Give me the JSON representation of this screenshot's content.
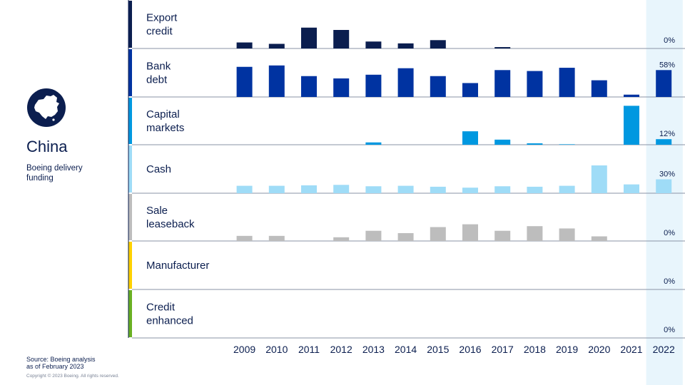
{
  "region": {
    "title": "China",
    "subtitle": "Boeing delivery funding",
    "icon": "china-globe-icon"
  },
  "footer": {
    "source_line1": "Source: Boeing analysis",
    "source_line2": "as of February 2023",
    "copyright": "Copyright © 2023 Boeing. All rights reserved."
  },
  "chart_data": {
    "type": "bar",
    "layout": "small-multiples",
    "categories": [
      "2009",
      "2010",
      "2011",
      "2012",
      "2013",
      "2014",
      "2015",
      "2016",
      "2017",
      "2018",
      "2019",
      "2020",
      "2021",
      "2022"
    ],
    "highlight_category": "2022",
    "series": [
      {
        "name": "Export credit",
        "label_lines": [
          "Export",
          "credit"
        ],
        "color": "#0b1e4f",
        "values": [
          13,
          10,
          45,
          40,
          15,
          11,
          18,
          0,
          3,
          0,
          0,
          0,
          0,
          0
        ],
        "label_2022": "0%"
      },
      {
        "name": "Bank debt",
        "label_lines": [
          "Bank",
          "debt"
        ],
        "color": "#0033a1",
        "values": [
          65,
          68,
          45,
          40,
          48,
          62,
          45,
          30,
          58,
          56,
          63,
          36,
          5,
          58
        ],
        "label_2022": "58%"
      },
      {
        "name": "Capital markets",
        "label_lines": [
          "Capital",
          "markets"
        ],
        "color": "#0098e0",
        "values": [
          0,
          0,
          0,
          0,
          5,
          0,
          0,
          29,
          11,
          3,
          1,
          0,
          84,
          12
        ],
        "label_2022": "12%"
      },
      {
        "name": "Cash",
        "label_lines": [
          "Cash"
        ],
        "color": "#9fdcf7",
        "values": [
          16,
          16,
          17,
          18,
          15,
          16,
          14,
          12,
          15,
          14,
          16,
          60,
          19,
          30
        ],
        "label_2022": "30%"
      },
      {
        "name": "Sale leaseback",
        "label_lines": [
          "Sale",
          "leaseback"
        ],
        "color": "#bdbdbd",
        "values": [
          11,
          11,
          0,
          8,
          22,
          17,
          30,
          36,
          22,
          32,
          27,
          10,
          0,
          0
        ],
        "label_2022": "0%"
      },
      {
        "name": "Manufacturer",
        "label_lines": [
          "Manufacturer"
        ],
        "color": "#ffd100",
        "values": [
          0,
          0,
          0,
          0,
          0,
          0,
          0,
          0,
          0,
          0,
          0,
          0,
          0,
          0
        ],
        "label_2022": "0%"
      },
      {
        "name": "Credit enhanced",
        "label_lines": [
          "Credit",
          "enhanced"
        ],
        "color": "#6ab023",
        "values": [
          0,
          0,
          0,
          0,
          0,
          0,
          0,
          0,
          0,
          0,
          0,
          0,
          0,
          0
        ],
        "label_2022": "0%"
      }
    ]
  }
}
